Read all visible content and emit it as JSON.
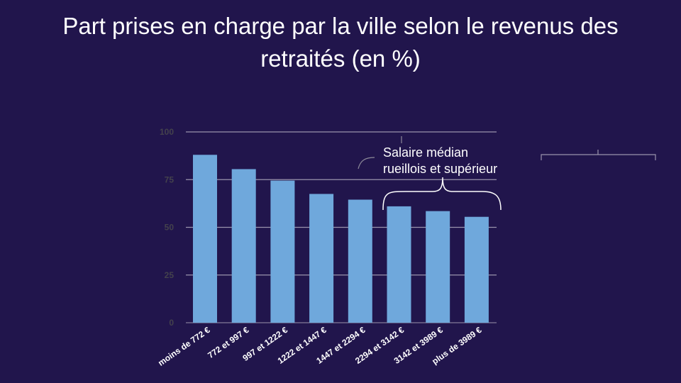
{
  "colors": {
    "background": "#21154c",
    "bar": "#6fa8dc",
    "grid": "#9a94ad",
    "tick_text": "#44424c",
    "xtick_text": "#ffffff",
    "title": "#ffffff"
  },
  "chart_data": {
    "type": "bar",
    "title": "Part prises en charge par la ville selon le revenus des retraités (en %)",
    "categories": [
      "moins de 772 €",
      "772 et 997 €",
      "997 et 1222 €",
      "1222 et 1447 €",
      "1447 et 2294 €",
      "2294 et 3142 €",
      "3142 et 3989 €",
      "plus de 3989 €"
    ],
    "values": [
      88,
      80.5,
      74.5,
      67.5,
      64.5,
      61,
      58.5,
      55.5
    ],
    "xlabel": "",
    "ylabel": "",
    "ylim": [
      0,
      100
    ],
    "yticks": [
      "0",
      "25",
      "50",
      "75",
      "100"
    ],
    "grid": true,
    "legend": "none",
    "annotation": {
      "line1": "Salaire médian",
      "line2": "rueillois et supérieur",
      "categories": [
        "2294 et 3142 €",
        "3142 et 3989 €",
        "plus de 3989 €"
      ]
    }
  }
}
